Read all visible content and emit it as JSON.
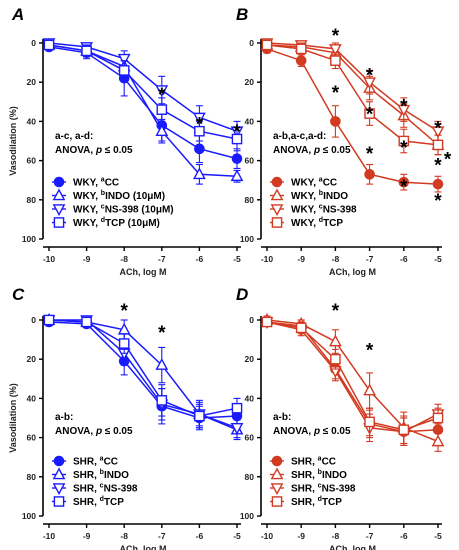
{
  "chart_data": [
    {
      "type": "line",
      "panel": "A",
      "xlabel": "ACh, log M",
      "ylabel": "Vasodilation (%)",
      "x": [
        -10,
        -9,
        -8,
        -7,
        -6,
        -5
      ],
      "xlim": [
        -10,
        -5
      ],
      "ylim": [
        100,
        0
      ],
      "yticks": [
        0,
        20,
        40,
        60,
        80,
        100
      ],
      "stat_line1": "a-c, a-d:",
      "stat_line2a": "ANOVA, ",
      "stat_p": "p",
      "stat_line2b": " ≤ 0.05",
      "color": "#1a1aff",
      "series": [
        {
          "name": "WKY, ",
          "sup": "a",
          "name_rest": "CC",
          "marker": "circle",
          "filled": true,
          "values": [
            2,
            5,
            18,
            42,
            54,
            59
          ],
          "errors": [
            2,
            3,
            9,
            8,
            7,
            5
          ]
        },
        {
          "name": "WKY, ",
          "sup": "b",
          "name_rest": "INDO (10μM)",
          "marker": "triangle-up",
          "filled": false,
          "values": [
            1,
            4,
            12,
            45,
            67,
            68
          ],
          "errors": [
            2,
            3,
            6,
            6,
            5,
            3
          ]
        },
        {
          "name": "WKY, ",
          "sup": "c",
          "name_rest": "NS-398 (10μM)",
          "marker": "triangle-down",
          "filled": false,
          "values": [
            0,
            2,
            8,
            24,
            38,
            45
          ],
          "errors": [
            2,
            2,
            4,
            7,
            6,
            5
          ]
        },
        {
          "name": "WKY, ",
          "sup": "d",
          "name_rest": "TCP (10μM)",
          "marker": "square",
          "filled": false,
          "values": [
            1,
            4,
            14,
            34,
            45,
            49
          ],
          "errors": [
            2,
            3,
            5,
            6,
            5,
            6
          ]
        }
      ],
      "stars": [
        {
          "x": -7,
          "y": 26
        },
        {
          "x": -6,
          "y": 41
        },
        {
          "x": -5,
          "y": 45
        }
      ]
    },
    {
      "type": "line",
      "panel": "B",
      "xlabel": "ACh, log M",
      "ylabel": "",
      "x": [
        -10,
        -9,
        -8,
        -7,
        -6,
        -5
      ],
      "xlim": [
        -10,
        -5
      ],
      "ylim": [
        100,
        0
      ],
      "yticks": [
        0,
        20,
        40,
        60,
        80,
        100
      ],
      "stat_line1": "a-b,a-c,a-d:",
      "stat_line2a": "ANOVA, ",
      "stat_p": "p",
      "stat_line2b": " ≤ 0.05",
      "color": "#d23a22",
      "series": [
        {
          "name": "WKY, ",
          "sup": "a",
          "name_rest": "CC",
          "marker": "circle",
          "filled": true,
          "values": [
            3,
            9,
            40,
            67,
            71,
            72
          ],
          "errors": [
            2,
            3,
            8,
            5,
            4,
            4
          ]
        },
        {
          "name": "WKY, ",
          "sup": "b",
          "name_rest": "INDO",
          "marker": "triangle-up",
          "filled": false,
          "values": [
            1,
            2,
            5,
            23,
            37,
            52
          ],
          "errors": [
            2,
            2,
            4,
            6,
            6,
            5
          ]
        },
        {
          "name": "WKY, ",
          "sup": "c",
          "name_rest": "NS-398",
          "marker": "triangle-down",
          "filled": false,
          "values": [
            0,
            1,
            3,
            20,
            34,
            45
          ],
          "errors": [
            2,
            2,
            3,
            6,
            6,
            5
          ]
        },
        {
          "name": "WKY, ",
          "sup": "d",
          "name_rest": "TCP",
          "marker": "square",
          "filled": false,
          "values": [
            1,
            3,
            9,
            36,
            50,
            52
          ],
          "errors": [
            2,
            3,
            4,
            6,
            6,
            5
          ]
        }
      ],
      "stars": [
        {
          "x": -8,
          "y": -4
        },
        {
          "x": -8,
          "y": 25
        },
        {
          "x": -7,
          "y": 16
        },
        {
          "x": -7,
          "y": 36
        },
        {
          "x": -7,
          "y": 56
        },
        {
          "x": -6,
          "y": 32
        },
        {
          "x": -6,
          "y": 53
        },
        {
          "x": -6,
          "y": 73
        },
        {
          "x": -5,
          "y": 43
        },
        {
          "x": -5,
          "y": 62
        },
        {
          "x": -5,
          "y": 80
        },
        {
          "x": -4.72,
          "y": 59
        }
      ]
    },
    {
      "type": "line",
      "panel": "C",
      "xlabel": "ACh, log M",
      "ylabel": "Vasodilation (%)",
      "x": [
        -10,
        -9,
        -8,
        -7,
        -6,
        -5
      ],
      "xlim": [
        -10,
        -5
      ],
      "ylim": [
        100,
        0
      ],
      "yticks": [
        0,
        20,
        40,
        60,
        80,
        100
      ],
      "stat_line1": "a-b:",
      "stat_line2a": "ANOVA, ",
      "stat_p": "p",
      "stat_line2b": " ≤ 0.05",
      "color": "#1a1aff",
      "series": [
        {
          "name": "SHR, ",
          "sup": "a",
          "name_rest": "CC",
          "marker": "circle",
          "filled": true,
          "values": [
            1,
            2,
            21,
            44,
            50,
            49
          ],
          "errors": [
            2,
            2,
            7,
            9,
            6,
            5
          ]
        },
        {
          "name": "SHR, ",
          "sup": "b",
          "name_rest": "INDO",
          "marker": "triangle-up",
          "filled": false,
          "values": [
            0,
            1,
            5,
            23,
            48,
            56
          ],
          "errors": [
            2,
            2,
            5,
            9,
            7,
            5
          ]
        },
        {
          "name": "SHR, ",
          "sup": "c",
          "name_rest": "NS-398",
          "marker": "triangle-down",
          "filled": false,
          "values": [
            0,
            0,
            17,
            43,
            48,
            55
          ],
          "errors": [
            2,
            2,
            6,
            8,
            6,
            5
          ]
        },
        {
          "name": "SHR, ",
          "sup": "d",
          "name_rest": "TCP",
          "marker": "square",
          "filled": false,
          "values": [
            0,
            1,
            12,
            41,
            49,
            45
          ],
          "errors": [
            2,
            2,
            5,
            8,
            6,
            5
          ]
        }
      ],
      "stars": [
        {
          "x": -8,
          "y": -5
        },
        {
          "x": -7,
          "y": 6
        }
      ]
    },
    {
      "type": "line",
      "panel": "D",
      "xlabel": "ACh, log M",
      "ylabel": "",
      "x": [
        -10,
        -9,
        -8,
        -7,
        -6,
        -5
      ],
      "xlim": [
        -10,
        -5
      ],
      "ylim": [
        100,
        0
      ],
      "yticks": [
        0,
        20,
        40,
        60,
        80,
        100
      ],
      "stat_line1": "a-b:",
      "stat_line2a": "ANOVA, ",
      "stat_p": "p",
      "stat_line2b": " ≤ 0.05",
      "color": "#d23a22",
      "series": [
        {
          "name": "SHR, ",
          "sup": "a",
          "name_rest": "CC",
          "marker": "circle",
          "filled": true,
          "values": [
            1,
            3,
            25,
            53,
            57,
            56
          ],
          "errors": [
            2,
            3,
            5,
            7,
            7,
            6
          ]
        },
        {
          "name": "SHR, ",
          "sup": "b",
          "name_rest": "INDO",
          "marker": "triangle-up",
          "filled": false,
          "values": [
            0,
            2,
            11,
            36,
            55,
            62
          ],
          "errors": [
            2,
            2,
            6,
            9,
            8,
            5
          ]
        },
        {
          "name": "SHR, ",
          "sup": "c",
          "name_rest": "NS-398",
          "marker": "triangle-down",
          "filled": false,
          "values": [
            1,
            5,
            26,
            55,
            57,
            48
          ],
          "errors": [
            2,
            3,
            5,
            7,
            7,
            5
          ]
        },
        {
          "name": "SHR, ",
          "sup": "d",
          "name_rest": "TCP",
          "marker": "square",
          "filled": false,
          "values": [
            1,
            4,
            20,
            52,
            56,
            50
          ],
          "errors": [
            2,
            3,
            5,
            7,
            7,
            5
          ]
        }
      ],
      "stars": [
        {
          "x": -8,
          "y": -5
        },
        {
          "x": -7,
          "y": 15
        }
      ]
    }
  ]
}
